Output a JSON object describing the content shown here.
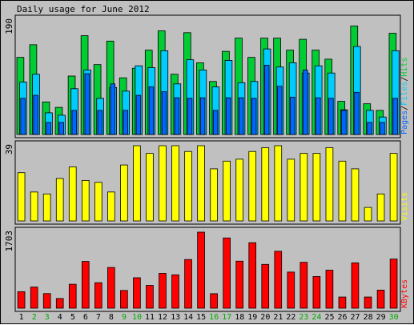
{
  "title": "Daily usage for June 2012",
  "colors": {
    "hits": "#00cc33",
    "files": "#00ccff",
    "pages": "#0066ff",
    "visits": "#ffff00",
    "kbytes": "#ff0000",
    "weekend_label": "#00aa00",
    "weekday_label": "#000000"
  },
  "chart_data": [
    {
      "type": "bar",
      "panel": "top",
      "ymax_label": "190",
      "legend": [
        {
          "name": "Hits",
          "color": "#00cc33"
        },
        {
          "name": "Files",
          "color": "#00ccff"
        },
        {
          "name": "Pages",
          "color": "#0066ff"
        }
      ],
      "legend_separators": [
        "/",
        "/"
      ],
      "ylim": [
        0,
        190
      ],
      "categories": [
        "1",
        "2",
        "3",
        "4",
        "5",
        "6",
        "7",
        "8",
        "9",
        "10",
        "11",
        "12",
        "13",
        "14",
        "15",
        "16",
        "17",
        "18",
        "19",
        "20",
        "21",
        "22",
        "23",
        "24",
        "25",
        "26",
        "27",
        "28",
        "29",
        "30"
      ],
      "series": [
        {
          "name": "Hits",
          "values": [
            128,
            149,
            54,
            45,
            97,
            164,
            116,
            155,
            94,
            110,
            140,
            172,
            100,
            169,
            119,
            88,
            138,
            160,
            128,
            160,
            160,
            140,
            158,
            140,
            125,
            55,
            180,
            51,
            40,
            168
          ]
        },
        {
          "name": "Files",
          "values": [
            87,
            100,
            36,
            32,
            76,
            107,
            60,
            78,
            72,
            114,
            111,
            139,
            84,
            124,
            107,
            79,
            123,
            86,
            88,
            142,
            112,
            119,
            102,
            114,
            102,
            41,
            146,
            40,
            29,
            139
          ]
        },
        {
          "name": "Pages",
          "values": [
            60,
            65,
            20,
            20,
            40,
            101,
            40,
            84,
            40,
            65,
            79,
            71,
            61,
            60,
            61,
            40,
            61,
            61,
            60,
            115,
            80,
            62,
            107,
            61,
            60,
            40,
            70,
            20,
            20,
            60
          ]
        }
      ]
    },
    {
      "type": "bar",
      "panel": "middle",
      "ymax_label": "39",
      "legend": [
        {
          "name": "Visits",
          "color": "#ffff00"
        }
      ],
      "ylim": [
        0,
        39
      ],
      "categories": [
        "1",
        "2",
        "3",
        "4",
        "5",
        "6",
        "7",
        "8",
        "9",
        "10",
        "11",
        "12",
        "13",
        "14",
        "15",
        "16",
        "17",
        "18",
        "19",
        "20",
        "21",
        "22",
        "23",
        "24",
        "25",
        "26",
        "27",
        "28",
        "29",
        "30"
      ],
      "series": [
        {
          "name": "Visits",
          "values": [
            25,
            15,
            14,
            22,
            28,
            21,
            20,
            15,
            29,
            39,
            35,
            39,
            39,
            36,
            39,
            27,
            31,
            32,
            36,
            38,
            39,
            32,
            35,
            35,
            38,
            31,
            27,
            7,
            14,
            35
          ]
        }
      ]
    },
    {
      "type": "bar",
      "panel": "bottom",
      "ymax_label": "1703",
      "legend": [
        {
          "name": "KBytes",
          "color": "#ff0000"
        }
      ],
      "ylim": [
        0,
        1703
      ],
      "categories": [
        "1",
        "2",
        "3",
        "4",
        "5",
        "6",
        "7",
        "8",
        "9",
        "10",
        "11",
        "12",
        "13",
        "14",
        "15",
        "16",
        "17",
        "18",
        "19",
        "20",
        "21",
        "22",
        "23",
        "24",
        "25",
        "26",
        "27",
        "28",
        "29",
        "30"
      ],
      "series": [
        {
          "name": "KBytes",
          "values": [
            370,
            474,
            327,
            217,
            536,
            1047,
            571,
            912,
            397,
            682,
            510,
            780,
            747,
            1090,
            1703,
            325,
            1573,
            1053,
            1467,
            981,
            1275,
            809,
            1028,
            710,
            852,
            250,
            1016,
            250,
            405,
            1101
          ]
        }
      ]
    }
  ],
  "x_labels": {
    "days": [
      "1",
      "2",
      "3",
      "4",
      "5",
      "6",
      "7",
      "8",
      "9",
      "10",
      "11",
      "12",
      "13",
      "14",
      "15",
      "16",
      "17",
      "18",
      "19",
      "20",
      "21",
      "22",
      "23",
      "24",
      "25",
      "26",
      "27",
      "28",
      "29",
      "30"
    ],
    "weekend": [
      2,
      3,
      9,
      10,
      16,
      17,
      23,
      24,
      30
    ]
  }
}
